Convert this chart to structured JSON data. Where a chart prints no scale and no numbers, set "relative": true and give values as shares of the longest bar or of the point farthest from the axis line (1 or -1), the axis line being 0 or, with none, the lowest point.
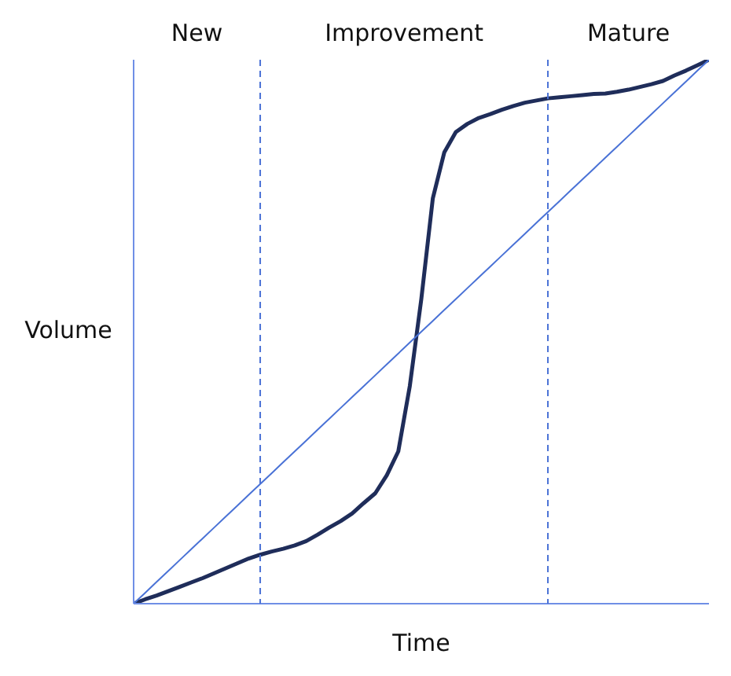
{
  "chart_data": {
    "type": "line",
    "xlabel": "Time",
    "ylabel": "Volume",
    "relative": true,
    "grid": false,
    "legend": false,
    "marker": "none",
    "annotations": [
      "New",
      "Improvement",
      "Mature"
    ],
    "categories": [
      null,
      null,
      null,
      null,
      null,
      null,
      null,
      null,
      null,
      null,
      null,
      null,
      null,
      null,
      null,
      null,
      null,
      null,
      null,
      null,
      null,
      null,
      null,
      null,
      null,
      null,
      null,
      null,
      null,
      null,
      null,
      null,
      null,
      null,
      null,
      null,
      null,
      null,
      null,
      null,
      null,
      null,
      null,
      null,
      null,
      null,
      null,
      null,
      null,
      null,
      null
    ],
    "series": [
      {
        "color": "#1f2d5a",
        "values": [
          0,
          0.008,
          0.015,
          0.023,
          0.031,
          0.039,
          0.047,
          0.056,
          0.065,
          0.074,
          0.083,
          0.09,
          0.096,
          0.101,
          0.107,
          0.115,
          0.127,
          0.14,
          0.152,
          0.166,
          0.185,
          0.203,
          0.236,
          0.28,
          0.4,
          0.56,
          0.745,
          0.83,
          0.867,
          0.882,
          0.893,
          0.9,
          0.908,
          0.915,
          0.921,
          0.925,
          0.929,
          0.931,
          0.933,
          0.935,
          0.937,
          0.938,
          0.941,
          0.945,
          0.95,
          0.955,
          0.961,
          0.971,
          0.98,
          0.99,
          1
        ]
      },
      {
        "color": "#4a72d6",
        "values": [
          0,
          0.02,
          0.04,
          0.06,
          0.08,
          0.1,
          0.12,
          0.14,
          0.16,
          0.18,
          0.2,
          0.22,
          0.24,
          0.26,
          0.28,
          0.3,
          0.32,
          0.34,
          0.36,
          0.38,
          0.4,
          0.42,
          0.44,
          0.46,
          0.48,
          0.5,
          0.52,
          0.54,
          0.56,
          0.58,
          0.6,
          0.62,
          0.64,
          0.66,
          0.68,
          0.7,
          0.72,
          0.74,
          0.76,
          0.78,
          0.8,
          0.82,
          0.84,
          0.86,
          0.88,
          0.9,
          0.92,
          0.94,
          0.96,
          0.98,
          1
        ]
      }
    ]
  }
}
